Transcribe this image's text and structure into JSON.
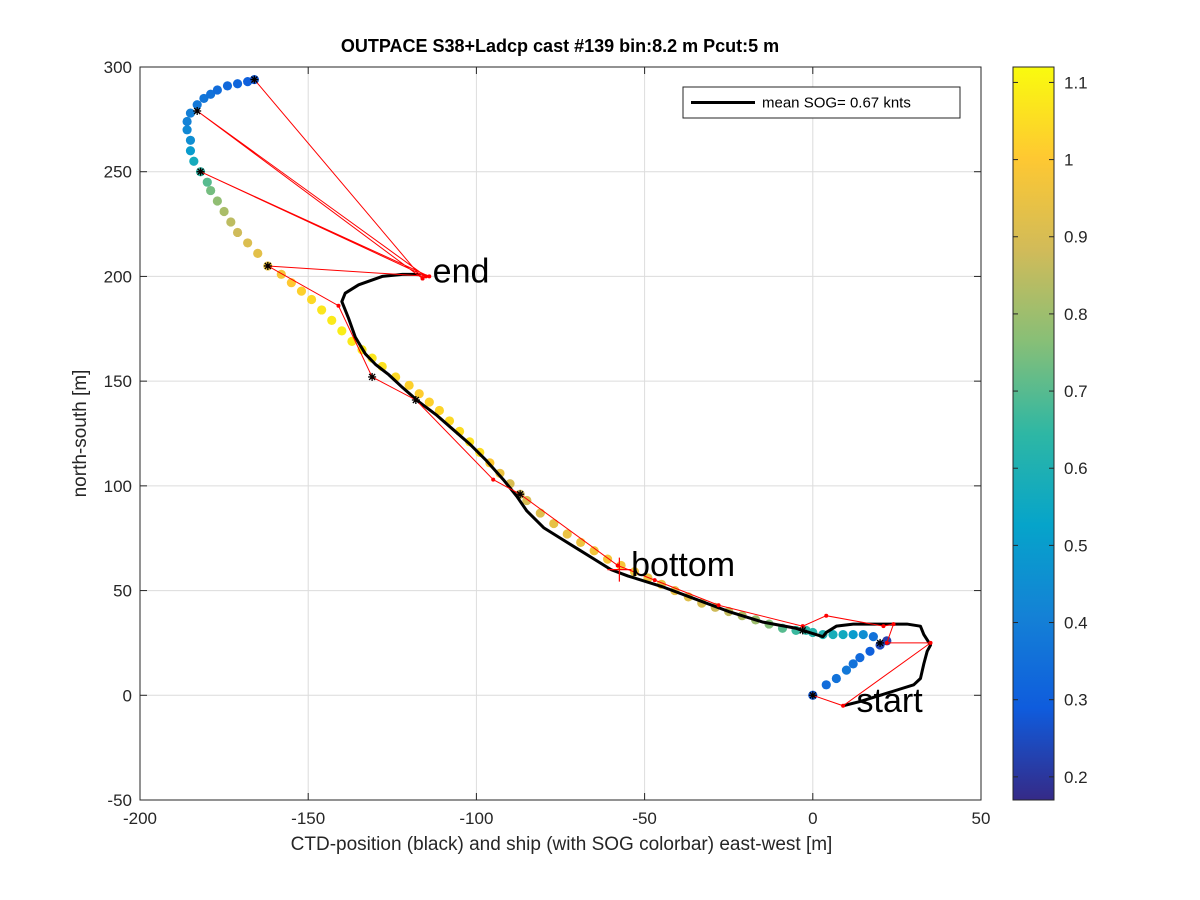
{
  "chart_data": {
    "type": "scatter",
    "title": "OUTPACE S38+Ladcp cast #139 bin:8.2 m  Pcut:5 m",
    "xlabel": "CTD-position (black) and ship (with SOG colorbar) east-west [m]",
    "ylabel": "north-south [m]",
    "xlim": [
      -200,
      50
    ],
    "ylim": [
      -50,
      300
    ],
    "xticks": [
      "-200",
      "-150",
      "-100",
      "-50",
      "0",
      "50"
    ],
    "yticks": [
      "-50",
      "0",
      "50",
      "100",
      "150",
      "200",
      "250",
      "300"
    ],
    "grid": true,
    "legend": {
      "label": "mean SOG=  0.67 knts",
      "location": "top-right"
    },
    "colorbar": {
      "range": [
        0.17,
        1.12
      ],
      "ticks": [
        "0.2",
        "0.3",
        "0.4",
        "0.5",
        "0.6",
        "0.7",
        "0.8",
        "0.9",
        "1",
        "1.1"
      ],
      "colormap": [
        "#352a87",
        "#0f5cdd",
        "#1481d6",
        "#06a4ca",
        "#2eb7a4",
        "#87bf77",
        "#d1bb59",
        "#fec832",
        "#f9fb0e"
      ]
    },
    "annotations": [
      {
        "text": "end",
        "x": -113,
        "y": 197
      },
      {
        "text": "bottom",
        "x": -54,
        "y": 57
      },
      {
        "text": "start",
        "x": 13,
        "y": -8
      }
    ],
    "series": [
      {
        "name": "mean SOG=  0.67 knts",
        "kind": "ctd-track",
        "color": "#000000",
        "points": [
          [
            9,
            -5
          ],
          [
            14,
            -3
          ],
          [
            20,
            0
          ],
          [
            26,
            3
          ],
          [
            30,
            5
          ],
          [
            32,
            8
          ],
          [
            33,
            15
          ],
          [
            34,
            21
          ],
          [
            35,
            24
          ],
          [
            33,
            29
          ],
          [
            32,
            33
          ],
          [
            28,
            34
          ],
          [
            20,
            34
          ],
          [
            12,
            34
          ],
          [
            7,
            33
          ],
          [
            4,
            30
          ],
          [
            3,
            28
          ],
          [
            -5,
            32
          ],
          [
            -15,
            35
          ],
          [
            -25,
            40
          ],
          [
            -35,
            46
          ],
          [
            -45,
            52
          ],
          [
            -55,
            57
          ],
          [
            -60,
            60
          ],
          [
            -65,
            65
          ],
          [
            -70,
            70
          ],
          [
            -75,
            75
          ],
          [
            -80,
            80
          ],
          [
            -85,
            88
          ],
          [
            -88,
            95
          ],
          [
            -92,
            103
          ],
          [
            -97,
            112
          ],
          [
            -102,
            120
          ],
          [
            -107,
            127
          ],
          [
            -112,
            134
          ],
          [
            -117,
            140
          ],
          [
            -122,
            147
          ],
          [
            -126,
            153
          ],
          [
            -130,
            158
          ],
          [
            -133,
            163
          ],
          [
            -136,
            171
          ],
          [
            -138,
            180
          ],
          [
            -140,
            188
          ],
          [
            -139,
            192
          ],
          [
            -135,
            196
          ],
          [
            -128,
            200
          ],
          [
            -122,
            201
          ],
          [
            -117,
            201
          ]
        ]
      },
      {
        "name": "",
        "kind": "ship-sog",
        "points": [
          [
            0,
            0,
            0.28
          ],
          [
            4,
            5,
            0.34
          ],
          [
            7,
            8,
            0.36
          ],
          [
            10,
            12,
            0.38
          ],
          [
            12,
            15,
            0.36
          ],
          [
            14,
            18,
            0.33
          ],
          [
            17,
            21,
            0.3
          ],
          [
            20,
            24,
            0.24
          ],
          [
            22,
            26,
            0.22
          ],
          [
            18,
            28,
            0.36
          ],
          [
            15,
            29,
            0.45
          ],
          [
            12,
            29,
            0.5
          ],
          [
            9,
            29,
            0.56
          ],
          [
            6,
            29,
            0.58
          ],
          [
            3,
            29,
            0.6
          ],
          [
            0,
            30,
            0.62
          ],
          [
            -2,
            31,
            0.64
          ],
          [
            -5,
            31,
            0.66
          ],
          [
            -9,
            32,
            0.7
          ],
          [
            -13,
            34,
            0.76
          ],
          [
            -17,
            36,
            0.8
          ],
          [
            -21,
            38,
            0.83
          ],
          [
            -25,
            40,
            0.86
          ],
          [
            -29,
            42,
            0.88
          ],
          [
            -33,
            44,
            0.9
          ],
          [
            -37,
            47,
            0.92
          ],
          [
            -41,
            50,
            0.94
          ],
          [
            -45,
            53,
            0.95
          ],
          [
            -49,
            56,
            0.96
          ],
          [
            -53,
            59,
            0.97
          ],
          [
            -57,
            62,
            0.98
          ],
          [
            -61,
            65,
            0.98
          ],
          [
            -65,
            69,
            0.97
          ],
          [
            -69,
            73,
            0.96
          ],
          [
            -73,
            77,
            0.95
          ],
          [
            -77,
            82,
            0.94
          ],
          [
            -81,
            87,
            0.92
          ],
          [
            -85,
            93,
            0.9
          ],
          [
            -87,
            96,
            0.88
          ],
          [
            -90,
            101,
            0.9
          ],
          [
            -93,
            106,
            0.95
          ],
          [
            -96,
            111,
            1.0
          ],
          [
            -99,
            116,
            1.05
          ],
          [
            -102,
            121,
            1.06
          ],
          [
            -105,
            126,
            1.05
          ],
          [
            -108,
            131,
            1.04
          ],
          [
            -111,
            136,
            1.03
          ],
          [
            -114,
            140,
            1.02
          ],
          [
            -117,
            144,
            1.01
          ],
          [
            -120,
            148,
            1.02
          ],
          [
            -124,
            152,
            1.04
          ],
          [
            -128,
            157,
            1.06
          ],
          [
            -131,
            161,
            1.07
          ],
          [
            -134,
            165,
            1.08
          ],
          [
            -137,
            169,
            1.08
          ],
          [
            -140,
            174,
            1.09
          ],
          [
            -143,
            179,
            1.08
          ],
          [
            -146,
            184,
            1.07
          ],
          [
            -149,
            189,
            1.04
          ],
          [
            -152,
            193,
            1.02
          ],
          [
            -155,
            197,
            1.0
          ],
          [
            -158,
            201,
            0.98
          ],
          [
            -162,
            205,
            0.96
          ],
          [
            -165,
            211,
            0.93
          ],
          [
            -168,
            216,
            0.91
          ],
          [
            -171,
            221,
            0.88
          ],
          [
            -173,
            226,
            0.85
          ],
          [
            -175,
            231,
            0.82
          ],
          [
            -177,
            236,
            0.78
          ],
          [
            -179,
            241,
            0.74
          ],
          [
            -180,
            245,
            0.7
          ],
          [
            -182,
            250,
            0.64
          ],
          [
            -184,
            255,
            0.57
          ],
          [
            -185,
            260,
            0.5
          ],
          [
            -185,
            265,
            0.45
          ],
          [
            -186,
            270,
            0.43
          ],
          [
            -186,
            274,
            0.41
          ],
          [
            -185,
            278,
            0.4
          ],
          [
            -183,
            282,
            0.38
          ],
          [
            -181,
            285,
            0.37
          ],
          [
            -179,
            287,
            0.36
          ],
          [
            -177,
            289,
            0.34
          ],
          [
            -174,
            291,
            0.33
          ],
          [
            -171,
            292,
            0.32
          ],
          [
            -168,
            293,
            0.3
          ],
          [
            -166,
            294,
            0.28
          ]
        ]
      },
      {
        "name": "",
        "kind": "connector-lines",
        "color": "#ff0000",
        "points": [
          [
            0,
            0
          ],
          [
            9,
            -5
          ],
          [
            35,
            25
          ],
          [
            22,
            25
          ],
          [
            24,
            34
          ],
          [
            21,
            33
          ],
          [
            4,
            38
          ],
          [
            -3,
            33
          ],
          [
            -28,
            43
          ],
          [
            -47,
            55
          ],
          [
            -58,
            62
          ],
          [
            -87,
            96
          ],
          [
            -95,
            103
          ],
          [
            -118,
            141
          ],
          [
            -131,
            152
          ],
          [
            -141,
            186
          ],
          [
            -162,
            205
          ],
          [
            -114,
            200
          ],
          [
            -182,
            250
          ],
          [
            -115,
            200
          ],
          [
            -183,
            279
          ],
          [
            -116,
            199
          ],
          [
            -166,
            294
          ],
          [
            -116,
            199
          ]
        ]
      },
      {
        "name": "",
        "kind": "markers",
        "color": "#000000",
        "points": [
          [
            -166,
            294
          ],
          [
            -183,
            279
          ],
          [
            -182,
            250
          ],
          [
            -162,
            205
          ],
          [
            -131,
            152
          ],
          [
            -118,
            141
          ],
          [
            -87,
            96
          ],
          [
            -3,
            31
          ],
          [
            20,
            25
          ],
          [
            0,
            0
          ]
        ]
      }
    ]
  }
}
